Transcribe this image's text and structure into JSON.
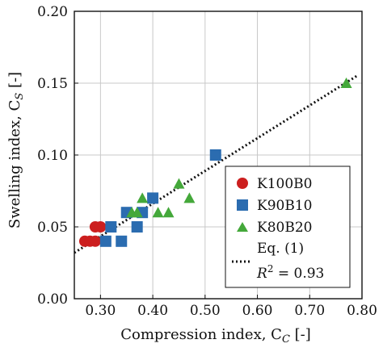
{
  "chart_data": {
    "type": "scatter",
    "xlabel": "Compression index, C",
    "xlabel_sub": "C",
    "xlabel_unit": " [-]",
    "ylabel": "Swelling index, C",
    "ylabel_sub": "S",
    "ylabel_unit": " [-]",
    "xlim": [
      0.25,
      0.8
    ],
    "ylim": [
      0.0,
      0.2
    ],
    "x_ticks": [
      0.3,
      0.4,
      0.5,
      0.6,
      0.7,
      0.8
    ],
    "x_tick_labels": [
      "0.30",
      "0.40",
      "0.50",
      "0.60",
      "0.70",
      "0.80"
    ],
    "y_ticks": [
      0.0,
      0.05,
      0.1,
      0.15,
      0.2
    ],
    "y_tick_labels": [
      "0.00",
      "0.05",
      "0.10",
      "0.15",
      "0.20"
    ],
    "grid": true,
    "legend_position": "lower-right",
    "series": [
      {
        "name": "K100B0",
        "marker": "circle",
        "color": "#cc1f1f",
        "points": [
          [
            0.27,
            0.04
          ],
          [
            0.28,
            0.04
          ],
          [
            0.29,
            0.04
          ],
          [
            0.29,
            0.05
          ],
          [
            0.3,
            0.05
          ]
        ]
      },
      {
        "name": "K90B10",
        "marker": "square",
        "color": "#2b6cb0",
        "points": [
          [
            0.31,
            0.04
          ],
          [
            0.32,
            0.05
          ],
          [
            0.34,
            0.04
          ],
          [
            0.35,
            0.06
          ],
          [
            0.37,
            0.05
          ],
          [
            0.38,
            0.06
          ],
          [
            0.4,
            0.07
          ],
          [
            0.52,
            0.1
          ]
        ]
      },
      {
        "name": "K80B20",
        "marker": "triangle",
        "color": "#44a83a",
        "points": [
          [
            0.36,
            0.06
          ],
          [
            0.37,
            0.06
          ],
          [
            0.38,
            0.07
          ],
          [
            0.41,
            0.06
          ],
          [
            0.43,
            0.06
          ],
          [
            0.45,
            0.08
          ],
          [
            0.47,
            0.07
          ],
          [
            0.77,
            0.15
          ]
        ]
      }
    ],
    "fit_line": {
      "label": "Eq. (1)",
      "r2_label": "R",
      "r2_sup": "2",
      "r2_value": " = 0.93",
      "style": "dotted",
      "color": "#111111",
      "x": [
        0.25,
        0.79
      ],
      "y": [
        0.032,
        0.155
      ]
    }
  }
}
